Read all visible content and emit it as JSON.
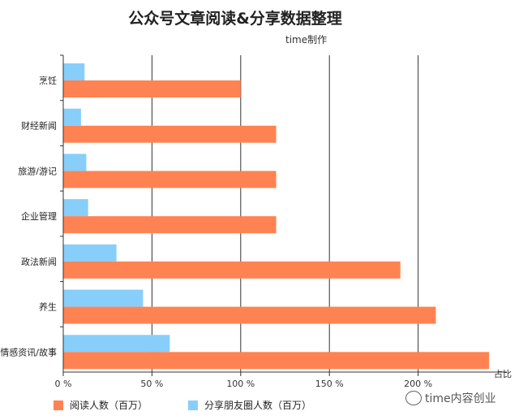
{
  "chart_data": {
    "type": "bar",
    "orientation": "horizontal",
    "title": "公众号文章阅读&分享数据整理",
    "subtitle": "time制作",
    "xlabel": "占比",
    "ylabel": "",
    "categories": [
      "烹饪",
      "财经新闻",
      "旅游/游记",
      "企业管理",
      "政法新闻",
      "养生",
      "情感资讯/故事"
    ],
    "series": [
      {
        "name": "阅读人数（百万）",
        "color": "#FF8352",
        "values": [
          100,
          120,
          120,
          120,
          190,
          210,
          240
        ]
      },
      {
        "name": "分享朋友圈人数（百万）",
        "color": "#87CEFA",
        "values": [
          12,
          10,
          13,
          14,
          30,
          45,
          60
        ]
      }
    ],
    "xlim": [
      0,
      250
    ],
    "xticks": [
      "0 %",
      "50 %",
      "100 %",
      "150 %",
      "200 %"
    ],
    "xtick_values": [
      0,
      50,
      100,
      150,
      200
    ],
    "grid": true,
    "legend_position": "bottom-left"
  },
  "watermark": "time内容创业"
}
